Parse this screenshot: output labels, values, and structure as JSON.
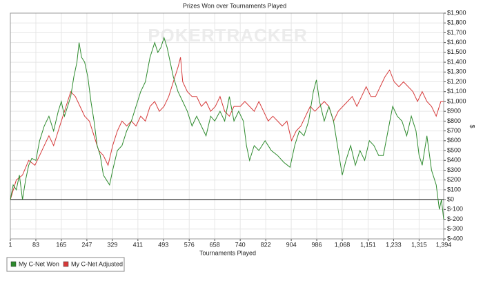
{
  "chart_data": {
    "type": "line",
    "title": "Prizes Won over Tournaments Played",
    "watermark": "POKERTRACKER",
    "xlabel": "Tournaments Played",
    "ylabel": "$",
    "xlim": [
      1,
      1394
    ],
    "ylim": [
      -400,
      1900
    ],
    "xticks": [
      1,
      83,
      165,
      247,
      329,
      411,
      493,
      576,
      658,
      740,
      822,
      904,
      986,
      {
        "value": 1068,
        "label": "1,068"
      },
      {
        "value": 1151,
        "label": "1,151"
      },
      {
        "value": 1233,
        "label": "1,233"
      },
      {
        "value": 1315,
        "label": "1,315"
      },
      {
        "value": 1394,
        "label": "1,394"
      }
    ],
    "yticks": [
      {
        "value": 1900,
        "label": "$1,900"
      },
      {
        "value": 1800,
        "label": "$1,800"
      },
      {
        "value": 1700,
        "label": "$1,700"
      },
      {
        "value": 1600,
        "label": "$1,600"
      },
      {
        "value": 1500,
        "label": "$1,500"
      },
      {
        "value": 1400,
        "label": "$1,400"
      },
      {
        "value": 1300,
        "label": "$1,300"
      },
      {
        "value": 1200,
        "label": "$1,200"
      },
      {
        "value": 1100,
        "label": "$1,100"
      },
      {
        "value": 1000,
        "label": "$1,000"
      },
      {
        "value": 900,
        "label": "$900"
      },
      {
        "value": 800,
        "label": "$800"
      },
      {
        "value": 700,
        "label": "$700"
      },
      {
        "value": 600,
        "label": "$600"
      },
      {
        "value": 500,
        "label": "$500"
      },
      {
        "value": 400,
        "label": "$400"
      },
      {
        "value": 300,
        "label": "$300"
      },
      {
        "value": 200,
        "label": "$200"
      },
      {
        "value": 100,
        "label": "$100"
      },
      {
        "value": 0,
        "label": "$0"
      },
      {
        "value": -100,
        "label": "$-100"
      },
      {
        "value": -200,
        "label": "$-200"
      },
      {
        "value": -300,
        "label": "$-300"
      },
      {
        "value": -400,
        "label": "$-400"
      }
    ],
    "grid": true,
    "legend": "bottom-left",
    "series": [
      {
        "name": "My C-Net Won",
        "color": "#2e8b2e",
        "x": [
          1,
          10,
          20,
          30,
          40,
          50,
          60,
          70,
          83,
          95,
          110,
          125,
          140,
          155,
          165,
          175,
          185,
          195,
          205,
          215,
          222,
          230,
          240,
          250,
          260,
          270,
          280,
          290,
          300,
          310,
          320,
          330,
          345,
          360,
          375,
          390,
          405,
          420,
          435,
          450,
          465,
          475,
          485,
          495,
          505,
          515,
          525,
          540,
          555,
          570,
          585,
          600,
          615,
          630,
          645,
          658,
          675,
          690,
          705,
          720,
          735,
          750,
          760,
          770,
          785,
          800,
          820,
          840,
          860,
          880,
          900,
          915,
          930,
          945,
          960,
          975,
          985,
          995,
          1010,
          1025,
          1040,
          1055,
          1068,
          1080,
          1095,
          1110,
          1125,
          1140,
          1155,
          1170,
          1185,
          1200,
          1215,
          1230,
          1245,
          1260,
          1275,
          1290,
          1305,
          1315,
          1325,
          1340,
          1355,
          1370,
          1380,
          1387,
          1394
        ],
        "values": [
          0,
          150,
          100,
          250,
          0,
          200,
          350,
          420,
          400,
          600,
          750,
          850,
          700,
          900,
          1000,
          850,
          950,
          1050,
          1250,
          1400,
          1600,
          1450,
          1400,
          1250,
          1000,
          800,
          550,
          450,
          250,
          200,
          150,
          300,
          500,
          550,
          700,
          800,
          950,
          1100,
          1200,
          1450,
          1600,
          1500,
          1550,
          1650,
          1550,
          1400,
          1250,
          1100,
          1000,
          900,
          750,
          850,
          750,
          650,
          850,
          800,
          900,
          800,
          1050,
          800,
          900,
          800,
          550,
          400,
          550,
          500,
          600,
          500,
          450,
          380,
          330,
          550,
          700,
          650,
          800,
          1100,
          1220,
          1000,
          800,
          950,
          800,
          500,
          250,
          400,
          550,
          350,
          500,
          400,
          600,
          550,
          450,
          450,
          700,
          950,
          850,
          800,
          650,
          850,
          700,
          450,
          350,
          650,
          300,
          150,
          -100,
          0,
          -200
        ]
      },
      {
        "name": "My C-Net Adjusted",
        "color": "#d63a3a",
        "x": [
          1,
          20,
          40,
          60,
          80,
          95,
          110,
          125,
          140,
          155,
          170,
          185,
          195,
          210,
          225,
          240,
          255,
          270,
          285,
          300,
          315,
          330,
          345,
          360,
          375,
          390,
          405,
          420,
          435,
          450,
          465,
          480,
          495,
          510,
          525,
          540,
          548,
          555,
          570,
          585,
          600,
          615,
          630,
          645,
          660,
          675,
          690,
          705,
          720,
          740,
          755,
          770,
          785,
          800,
          815,
          830,
          845,
          860,
          875,
          890,
          905,
          920,
          935,
          950,
          965,
          980,
          995,
          1010,
          1025,
          1040,
          1055,
          1070,
          1085,
          1100,
          1115,
          1130,
          1145,
          1160,
          1175,
          1190,
          1205,
          1220,
          1235,
          1250,
          1265,
          1280,
          1295,
          1310,
          1325,
          1340,
          1355,
          1370,
          1385,
          1394
        ],
        "values": [
          0,
          200,
          250,
          400,
          350,
          450,
          550,
          650,
          550,
          700,
          850,
          1000,
          1100,
          1050,
          950,
          850,
          800,
          650,
          500,
          450,
          350,
          550,
          700,
          800,
          750,
          800,
          750,
          850,
          800,
          950,
          1000,
          900,
          950,
          1050,
          1200,
          1350,
          1450,
          1200,
          1100,
          1050,
          1050,
          950,
          1000,
          900,
          950,
          1050,
          900,
          850,
          950,
          950,
          1000,
          950,
          900,
          1000,
          900,
          800,
          850,
          800,
          750,
          800,
          600,
          700,
          750,
          850,
          950,
          900,
          950,
          1000,
          950,
          800,
          900,
          950,
          1000,
          1050,
          950,
          1050,
          1150,
          1050,
          1050,
          1150,
          1250,
          1320,
          1200,
          1150,
          1200,
          1150,
          1100,
          1000,
          1100,
          1000,
          950,
          850,
          1000,
          1000
        ]
      }
    ]
  }
}
